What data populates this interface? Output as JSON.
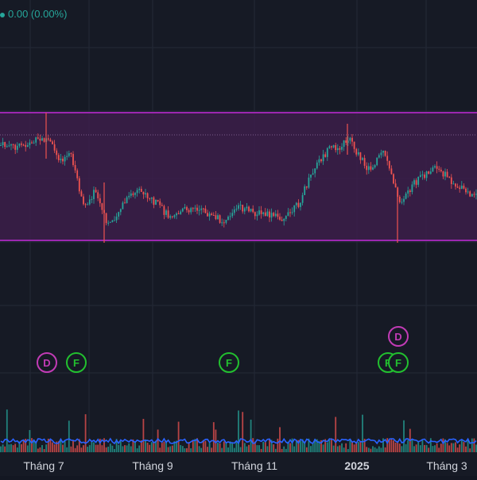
{
  "header": {
    "price_change_text": "0.00 (0.00%)"
  },
  "time_axis": {
    "labels": [
      "Tháng 7",
      "Tháng 9",
      "Tháng 11",
      "2025",
      "Tháng 3"
    ],
    "bold_label": "2025"
  },
  "channel": {
    "fill": "#3c1f4a",
    "line_color": "#9c27b0"
  },
  "event_markers": [
    {
      "letter": "D",
      "type": "dividend"
    },
    {
      "letter": "F",
      "type": "financial"
    },
    {
      "letter": "F",
      "type": "financial"
    },
    {
      "letter": "D",
      "type": "dividend"
    },
    {
      "letter": "F",
      "type": "financial"
    },
    {
      "letter": "F",
      "type": "financial"
    }
  ],
  "colors": {
    "background": "#161a25",
    "grid": "#242936",
    "up": "#26a69a",
    "down": "#ef5350",
    "dividend_marker": "#c23bb6",
    "financial_marker": "#22c02f",
    "axis_text": "#d1d4dc",
    "volume_ma": "#2962ff"
  },
  "icons": {
    "status": "status-dot-icon"
  }
}
